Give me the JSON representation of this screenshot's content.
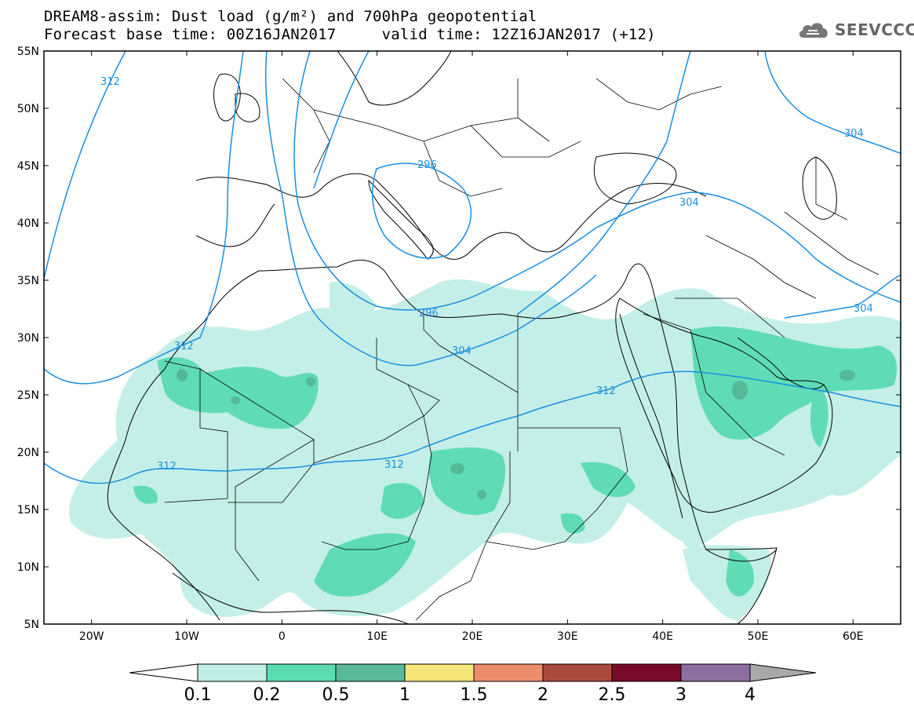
{
  "title": {
    "line1": "DREAM8-assim: Dust load (g/m²) and 700hPa geopotential",
    "line2": "Forecast base time: 00Z16JAN2017     valid time: 12Z16JAN2017 (+12)"
  },
  "logo": {
    "text": "SEEVCCC",
    "icon": "cloud-icon"
  },
  "map": {
    "lat_labels": [
      "55N",
      "50N",
      "45N",
      "40N",
      "35N",
      "30N",
      "25N",
      "20N",
      "15N",
      "10N",
      "5N"
    ],
    "lon_labels": [
      "20W",
      "10W",
      "0",
      "10E",
      "20E",
      "30E",
      "40E",
      "50E",
      "60E"
    ],
    "lon_range": [
      -25,
      65
    ],
    "lat_range": [
      5,
      55
    ],
    "contour_color": "#1a8fe0",
    "contour_labels": [
      "312",
      "304",
      "296",
      "304",
      "312",
      "312",
      "312",
      "304",
      "304",
      "312",
      "296"
    ]
  },
  "colorbar": {
    "colors": [
      "#bfeee6",
      "#5bdcb2",
      "#59b99a",
      "#f5e67a",
      "#eb8c6a",
      "#a84b3c",
      "#7a0a2a",
      "#8c6fa0",
      "#a9a9a9"
    ],
    "labels": [
      "0.1",
      "0.2",
      "0.5",
      "1",
      "1.5",
      "2",
      "2.5",
      "3",
      "4"
    ]
  },
  "dust_colors": {
    "light": "#c4efe8",
    "medium": "#5fdcb5",
    "dark": "#55b898"
  }
}
